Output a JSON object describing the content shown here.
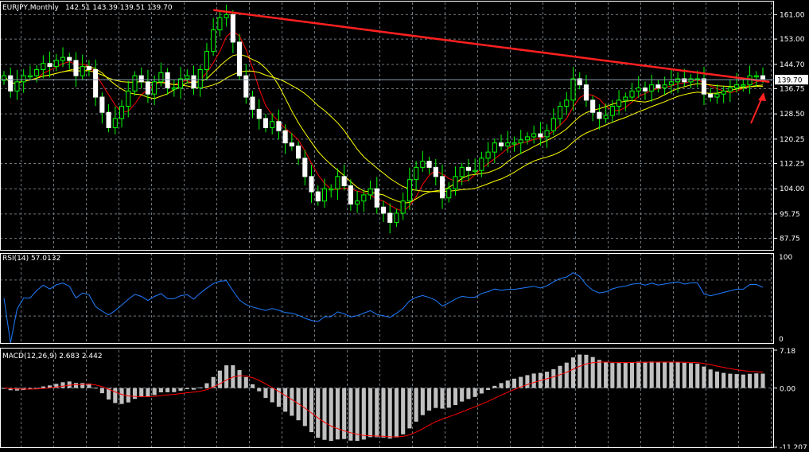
{
  "chart_data": [
    {
      "type": "candlestick",
      "panel": "price",
      "symbol_label": "EURJPY,Monthly",
      "ohlc_label": "142.51 143.39 139.51 139.70",
      "ohlc": {
        "open": 142.51,
        "high": 143.39,
        "low": 139.51,
        "close": 139.7
      },
      "current_price_label": "139.70",
      "ylim": [
        84,
        165
      ],
      "yticks": [
        "161.00",
        "153.00",
        "144.70",
        "136.75",
        "128.50",
        "120.25",
        "112.25",
        "104.00",
        "95.75",
        "87.75"
      ],
      "closes": [
        141,
        136,
        139,
        141,
        141,
        143,
        145,
        144,
        146,
        147,
        146,
        141,
        144,
        143,
        134,
        129,
        124,
        127,
        131,
        136,
        141,
        139,
        135,
        139,
        142,
        137,
        137,
        140,
        141,
        137,
        143,
        149,
        156,
        160,
        161,
        152,
        141,
        134,
        130,
        127,
        124,
        126,
        123,
        119,
        118,
        114,
        108,
        103,
        100,
        104,
        104,
        108,
        105,
        99,
        100,
        102,
        104,
        98,
        96,
        93,
        96,
        100,
        107,
        111,
        113,
        111,
        108,
        101,
        104,
        108,
        111,
        110,
        110,
        114,
        116,
        119,
        118,
        119,
        119,
        120,
        121,
        122,
        121,
        123,
        127,
        131,
        133,
        140,
        138,
        133,
        129,
        127,
        128,
        131,
        133,
        134,
        136,
        137,
        136,
        138,
        137,
        138,
        139,
        140,
        139,
        140,
        140,
        135,
        134,
        135,
        136,
        137,
        138,
        138,
        141,
        141,
        140
      ],
      "moving_averages": [
        {
          "color": "#ff0000"
        },
        {
          "color": "#ffff00"
        },
        {
          "color": "#ffff00"
        }
      ],
      "trendline": {
        "color": "#ff2020",
        "from": [
          32,
          162.5
        ],
        "to": [
          117,
          139.0
        ]
      },
      "colors": {
        "bull_body": "#000000",
        "bull_outline": "#00ff00",
        "bear_body": "#ffffff",
        "wick": "#00ff00"
      }
    },
    {
      "type": "line",
      "panel": "rsi",
      "label": "RSI(14) 57.0132",
      "ylim": [
        0,
        100
      ],
      "yticks": [
        "100",
        "0"
      ],
      "color": "#1e7cff"
    },
    {
      "type": "bar",
      "panel": "macd",
      "label": "MACD(12,26,9) 2.683 2.442",
      "ylim": [
        -11.207,
        7.18
      ],
      "yticks": [
        "7.18",
        "0.00",
        "-11.207"
      ],
      "histogram_color": "#c0c0c0",
      "signal_color": "#ff0000"
    }
  ],
  "colors": {
    "background": "#000000",
    "grid": "#6e7880",
    "text": "#ffffff"
  }
}
